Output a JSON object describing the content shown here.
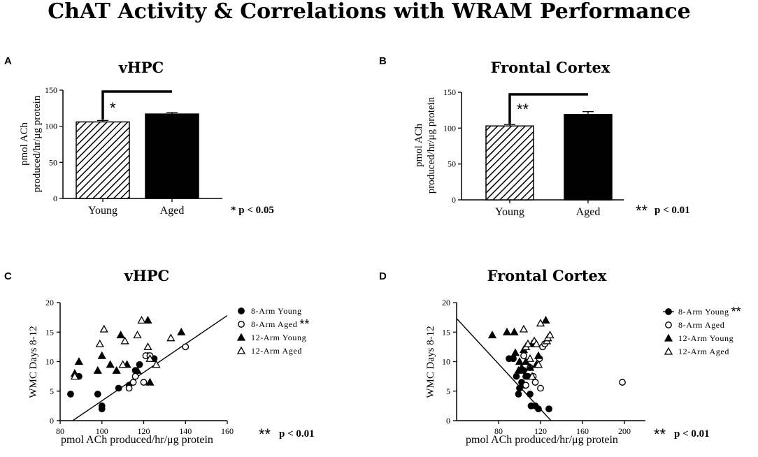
{
  "figure": {
    "title": "ChAT Activity & Correlations with WRAM Performance"
  },
  "chart_data": [
    {
      "panel": "A",
      "type": "bar",
      "title": "vHPC",
      "ylabel_line1": "pmol ACh",
      "ylabel_line2": "produced/hr/μg protein",
      "categories": [
        "Young",
        "Aged"
      ],
      "values": [
        106,
        117
      ],
      "errors": [
        2,
        2
      ],
      "ylim": [
        0,
        150
      ],
      "yticks": [
        0,
        50,
        100,
        150
      ],
      "bracket_label": "*",
      "significance": "* p < 0.05",
      "colors": {
        "young_pattern": "#000000",
        "aged": "#000000"
      }
    },
    {
      "panel": "B",
      "type": "bar",
      "title": "Frontal Cortex",
      "ylabel_line1": "pmol ACh",
      "ylabel_line2": "produced/hr/μg protein",
      "categories": [
        "Young",
        "Aged"
      ],
      "values": [
        103,
        119
      ],
      "errors": [
        2,
        4
      ],
      "ylim": [
        0,
        150
      ],
      "yticks": [
        0,
        50,
        100,
        150
      ],
      "bracket_label": "**",
      "significance_stars": "**",
      "significance_text": "p < 0.01",
      "colors": {
        "young_pattern": "#000000",
        "aged": "#000000"
      }
    },
    {
      "panel": "C",
      "type": "scatter",
      "title": "vHPC",
      "xlabel": "pmol ACh produced/hr/μg protein",
      "ylabel": "WMC Days 8-12",
      "xlim": [
        80,
        160
      ],
      "xticks": [
        80,
        100,
        120,
        140,
        160
      ],
      "ylim": [
        0,
        20
      ],
      "yticks": [
        0,
        5,
        10,
        15,
        20
      ],
      "series": [
        {
          "name": "8-Arm Young",
          "marker": "filled-circle",
          "x": [
            85,
            89,
            98,
            100,
            100,
            108,
            113,
            116,
            118,
            122,
            125
          ],
          "y": [
            4.5,
            7.5,
            4.5,
            2.5,
            2,
            5.5,
            6,
            8.5,
            9.5,
            11,
            10.5
          ]
        },
        {
          "name": "8-Arm Aged",
          "marker": "open-circle",
          "stars": "**",
          "x": [
            113,
            115,
            116,
            120,
            121,
            123,
            140
          ],
          "y": [
            5.5,
            6.5,
            7.5,
            6.5,
            11,
            11,
            12.5
          ]
        },
        {
          "name": "12-Arm Young",
          "marker": "filled-triangle",
          "x": [
            87,
            89,
            98,
            100,
            104,
            107,
            109,
            112,
            117,
            122,
            123,
            138
          ],
          "y": [
            8,
            10,
            8.5,
            11,
            9.5,
            8.5,
            14.5,
            9.5,
            8.5,
            17,
            6.5,
            15
          ]
        },
        {
          "name": "12-Arm Aged",
          "marker": "open-triangle",
          "x": [
            87,
            99,
            101,
            110,
            111,
            117,
            119,
            122,
            123,
            126,
            133
          ],
          "y": [
            7.5,
            13,
            15.5,
            9.5,
            13.5,
            14.5,
            17,
            12.5,
            10.5,
            9.5,
            14
          ]
        }
      ],
      "fit_line": {
        "x": [
          86,
          160
        ],
        "y": [
          0,
          17.8
        ]
      },
      "significance_stars": "**",
      "significance_text": "p < 0.01"
    },
    {
      "panel": "D",
      "type": "scatter",
      "title": "Frontal Cortex",
      "xlabel": "pmol ACh produced/hr/μg protein",
      "ylabel": "WMC Days 8-12",
      "xlim": [
        40,
        220
      ],
      "xticks": [
        80,
        120,
        160,
        200
      ],
      "ylim": [
        0,
        20
      ],
      "yticks": [
        0,
        5,
        10,
        15,
        20
      ],
      "series": [
        {
          "name": "8-Arm Young",
          "marker": "filled-circle",
          "stars": "**",
          "x": [
            90,
            94,
            97,
            99,
            100,
            102,
            104,
            105,
            106,
            108,
            110,
            111,
            115,
            118,
            128
          ],
          "y": [
            10.5,
            10.5,
            7.5,
            4.5,
            5.5,
            6.5,
            8.5,
            6,
            7.5,
            7.5,
            4.5,
            2.5,
            2.5,
            2,
            2
          ]
        },
        {
          "name": "8-Arm Aged",
          "marker": "open-circle",
          "x": [
            104,
            106,
            110,
            113,
            115,
            119,
            120,
            122,
            124,
            198
          ],
          "y": [
            11,
            6,
            9,
            7.5,
            6.5,
            10.5,
            5.5,
            12.5,
            13,
            6.5
          ]
        },
        {
          "name": "12-Arm Young",
          "marker": "filled-triangle",
          "x": [
            74,
            88,
            95,
            96,
            99,
            100,
            102,
            104,
            106,
            110,
            112,
            116,
            118,
            125
          ],
          "y": [
            14.5,
            15,
            15,
            11.5,
            8.5,
            10,
            9,
            12,
            10,
            9,
            13,
            9.5,
            11,
            17
          ]
        },
        {
          "name": "12-Arm Aged",
          "marker": "open-triangle",
          "x": [
            104,
            106,
            108,
            110,
            112,
            114,
            116,
            118,
            120,
            126,
            127,
            129
          ],
          "y": [
            15.5,
            12.5,
            13,
            10.5,
            7.5,
            13.5,
            13,
            9.5,
            16.5,
            13.5,
            14,
            14.5
          ]
        }
      ],
      "fit_line": {
        "x": [
          40,
          130
        ],
        "y": [
          17.3,
          0
        ]
      },
      "significance_stars": "**",
      "significance_text": "p < 0.01"
    }
  ]
}
